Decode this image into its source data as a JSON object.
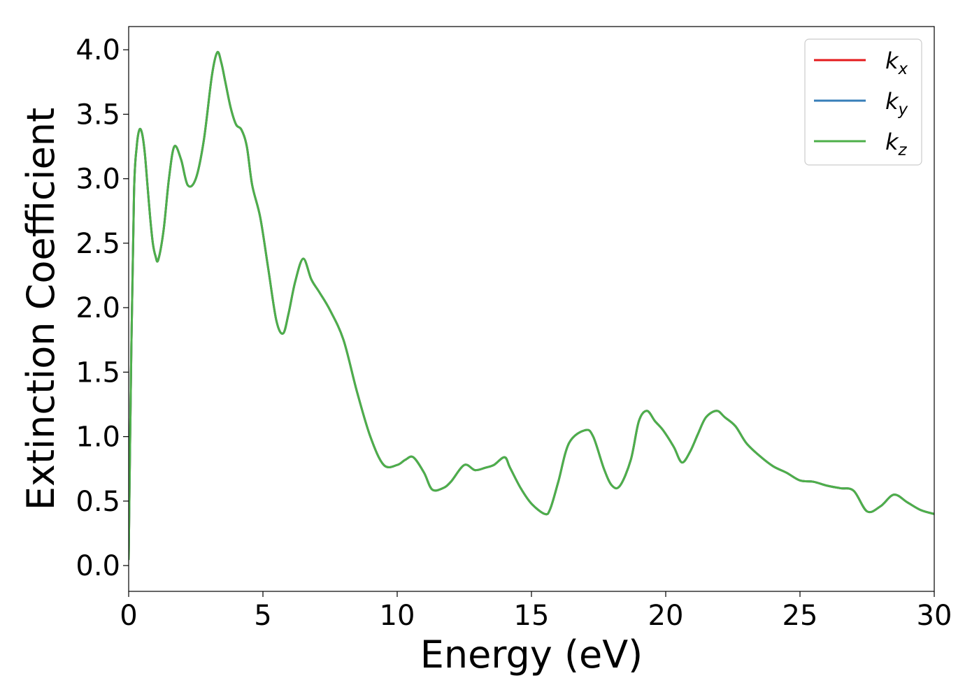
{
  "chart_data": {
    "type": "line",
    "title": "",
    "xlabel": "Energy (eV)",
    "ylabel": "Extinction Coefficient",
    "xlim": [
      0,
      30
    ],
    "ylim": [
      -0.2,
      4.18
    ],
    "xticks": [
      0,
      5,
      10,
      15,
      20,
      25,
      30
    ],
    "xtick_labels": [
      "0",
      "5",
      "10",
      "15",
      "20",
      "25",
      "30"
    ],
    "yticks": [
      0.0,
      0.5,
      1.0,
      1.5,
      2.0,
      2.5,
      3.0,
      3.5,
      4.0
    ],
    "ytick_labels": [
      "0.0",
      "0.5",
      "1.0",
      "1.5",
      "2.0",
      "2.5",
      "3.0",
      "3.5",
      "4.0"
    ],
    "grid": false,
    "legend_position": "top-right",
    "x": [
      0,
      0.1,
      0.2,
      0.3,
      0.4,
      0.5,
      0.6,
      0.7,
      0.8,
      0.9,
      1.0,
      1.1,
      1.3,
      1.5,
      1.7,
      1.95,
      2.2,
      2.5,
      2.8,
      3.1,
      3.3,
      3.45,
      3.6,
      3.8,
      4.0,
      4.2,
      4.4,
      4.6,
      4.9,
      5.2,
      5.5,
      5.75,
      5.95,
      6.2,
      6.5,
      6.8,
      7.1,
      7.5,
      8.0,
      8.5,
      9.0,
      9.5,
      10.0,
      10.3,
      10.6,
      11.0,
      11.3,
      11.7,
      12.0,
      12.5,
      12.9,
      13.3,
      13.6,
      14.0,
      14.2,
      14.6,
      15.0,
      15.5,
      15.7,
      16.0,
      16.4,
      17.0,
      17.3,
      17.7,
      18.0,
      18.3,
      18.7,
      19.0,
      19.3,
      19.6,
      19.9,
      20.3,
      20.6,
      20.9,
      21.2,
      21.5,
      21.9,
      22.2,
      22.6,
      23.0,
      23.5,
      24.0,
      24.5,
      25.0,
      25.5,
      26.0,
      26.5,
      27.0,
      27.5,
      28.0,
      28.5,
      29.0,
      29.5,
      30.0
    ],
    "series": [
      {
        "name": "k_x",
        "color": "#e41a1c",
        "values": [
          0.05,
          1.7,
          2.9,
          3.25,
          3.38,
          3.35,
          3.2,
          2.95,
          2.7,
          2.5,
          2.4,
          2.37,
          2.6,
          3.0,
          3.25,
          3.15,
          2.95,
          3.0,
          3.3,
          3.8,
          3.98,
          3.9,
          3.75,
          3.55,
          3.42,
          3.38,
          3.25,
          2.95,
          2.7,
          2.3,
          1.9,
          1.8,
          1.95,
          2.2,
          2.38,
          2.22,
          2.12,
          1.98,
          1.75,
          1.35,
          1.0,
          0.78,
          0.78,
          0.82,
          0.84,
          0.72,
          0.59,
          0.6,
          0.65,
          0.78,
          0.74,
          0.76,
          0.78,
          0.84,
          0.76,
          0.6,
          0.48,
          0.4,
          0.44,
          0.65,
          0.95,
          1.05,
          1.0,
          0.75,
          0.62,
          0.62,
          0.82,
          1.12,
          1.2,
          1.12,
          1.05,
          0.92,
          0.8,
          0.88,
          1.02,
          1.15,
          1.2,
          1.15,
          1.08,
          0.95,
          0.85,
          0.77,
          0.72,
          0.66,
          0.65,
          0.62,
          0.6,
          0.58,
          0.42,
          0.46,
          0.55,
          0.49,
          0.43,
          0.4
        ]
      },
      {
        "name": "k_y",
        "color": "#377eb8",
        "values": [
          0.05,
          1.7,
          2.9,
          3.25,
          3.38,
          3.35,
          3.2,
          2.95,
          2.7,
          2.5,
          2.4,
          2.37,
          2.6,
          3.0,
          3.25,
          3.15,
          2.95,
          3.0,
          3.3,
          3.8,
          3.98,
          3.9,
          3.75,
          3.55,
          3.42,
          3.38,
          3.25,
          2.95,
          2.7,
          2.3,
          1.9,
          1.8,
          1.95,
          2.2,
          2.38,
          2.22,
          2.12,
          1.98,
          1.75,
          1.35,
          1.0,
          0.78,
          0.78,
          0.82,
          0.84,
          0.72,
          0.59,
          0.6,
          0.65,
          0.78,
          0.74,
          0.76,
          0.78,
          0.84,
          0.76,
          0.6,
          0.48,
          0.4,
          0.44,
          0.65,
          0.95,
          1.05,
          1.0,
          0.75,
          0.62,
          0.62,
          0.82,
          1.12,
          1.2,
          1.12,
          1.05,
          0.92,
          0.8,
          0.88,
          1.02,
          1.15,
          1.2,
          1.15,
          1.08,
          0.95,
          0.85,
          0.77,
          0.72,
          0.66,
          0.65,
          0.62,
          0.6,
          0.58,
          0.42,
          0.46,
          0.55,
          0.49,
          0.43,
          0.4
        ]
      },
      {
        "name": "k_z",
        "color": "#4daf4a",
        "values": [
          0.05,
          1.7,
          2.9,
          3.25,
          3.38,
          3.35,
          3.2,
          2.95,
          2.7,
          2.5,
          2.4,
          2.37,
          2.6,
          3.0,
          3.25,
          3.15,
          2.95,
          3.0,
          3.3,
          3.8,
          3.98,
          3.9,
          3.75,
          3.55,
          3.42,
          3.38,
          3.25,
          2.95,
          2.7,
          2.3,
          1.9,
          1.8,
          1.95,
          2.2,
          2.38,
          2.22,
          2.12,
          1.98,
          1.75,
          1.35,
          1.0,
          0.78,
          0.78,
          0.82,
          0.84,
          0.72,
          0.59,
          0.6,
          0.65,
          0.78,
          0.74,
          0.76,
          0.78,
          0.84,
          0.76,
          0.6,
          0.48,
          0.4,
          0.44,
          0.65,
          0.95,
          1.05,
          1.0,
          0.75,
          0.62,
          0.62,
          0.82,
          1.12,
          1.2,
          1.12,
          1.05,
          0.92,
          0.8,
          0.88,
          1.02,
          1.15,
          1.2,
          1.15,
          1.08,
          0.95,
          0.85,
          0.77,
          0.72,
          0.66,
          0.65,
          0.62,
          0.6,
          0.58,
          0.42,
          0.46,
          0.55,
          0.49,
          0.43,
          0.4
        ]
      }
    ],
    "legend": [
      {
        "base": "k",
        "sub": "x",
        "color": "#e41a1c"
      },
      {
        "base": "k",
        "sub": "y",
        "color": "#377eb8"
      },
      {
        "base": "k",
        "sub": "z",
        "color": "#4daf4a"
      }
    ]
  }
}
